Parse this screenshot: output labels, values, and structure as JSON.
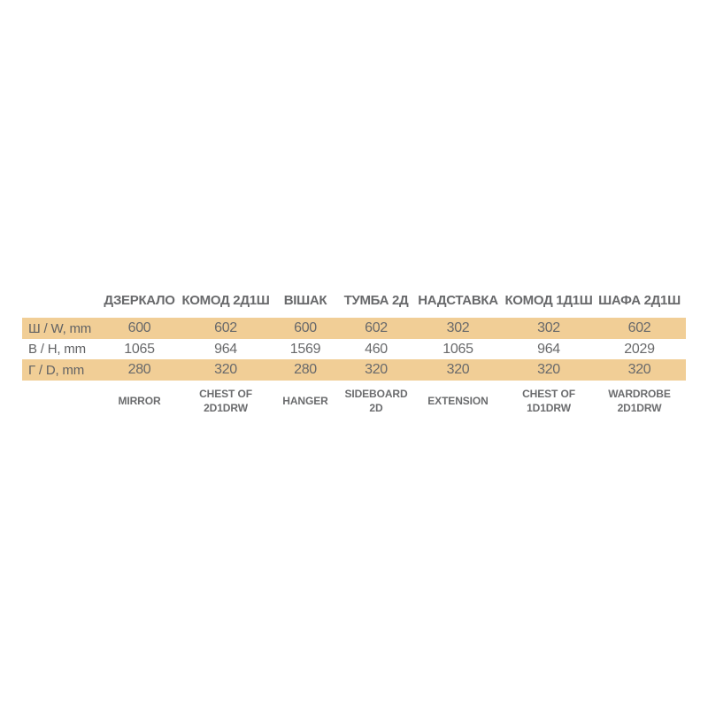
{
  "chart_data": {
    "type": "table",
    "title": "",
    "row_headers": [
      "Ш / W, mm",
      "В / H, mm",
      "Г / D, mm"
    ],
    "column_headers_ua": [
      "ДЗЕРКАЛО",
      "КОМОД 2Д1Ш",
      "ВІШАК",
      "ТУМБА 2Д",
      "НАДСТАВКА",
      "КОМОД 1Д1Ш",
      "ШАФА 2Д1Ш"
    ],
    "column_headers_en": [
      "MIRROR",
      "CHEST OF 2D1DRW",
      "HANGER",
      "SIDEBOARD 2D",
      "EXTENSION",
      "CHEST OF 1D1DRW",
      "WARDROBE 2D1DRW"
    ],
    "rows": [
      [
        600,
        602,
        600,
        602,
        302,
        302,
        602
      ],
      [
        1065,
        964,
        1569,
        460,
        1065,
        964,
        2029
      ],
      [
        280,
        320,
        280,
        320,
        320,
        320,
        320
      ]
    ]
  },
  "table": {
    "row_labels": {
      "width": "Ш / W, mm",
      "height": "В / H, mm",
      "depth": "Г / D, mm"
    },
    "columns": [
      {
        "name_ua": "ДЗЕРКАЛО",
        "name_en": "MIRROR",
        "w": "600",
        "h": "1065",
        "d": "280"
      },
      {
        "name_ua": "КОМОД 2Д1Ш",
        "name_en": "CHEST OF 2D1DRW",
        "w": "602",
        "h": "964",
        "d": "320"
      },
      {
        "name_ua": "ВІШАК",
        "name_en": "HANGER",
        "w": "600",
        "h": "1569",
        "d": "280"
      },
      {
        "name_ua": "ТУМБА 2Д",
        "name_en": "SIDEBOARD 2D",
        "w": "602",
        "h": "460",
        "d": "320"
      },
      {
        "name_ua": "НАДСТАВКА",
        "name_en": "EXTENSION",
        "w": "302",
        "h": "1065",
        "d": "320"
      },
      {
        "name_ua": "КОМОД 1Д1Ш",
        "name_en": "CHEST OF 1D1DRW",
        "w": "302",
        "h": "964",
        "d": "320"
      },
      {
        "name_ua": "ШАФА 2Д1Ш",
        "name_en": "WARDROBE 2D1DRW",
        "w": "602",
        "h": "2029",
        "d": "320"
      }
    ],
    "colors": {
      "band": "#f1ce96",
      "text": "#68696b",
      "background": "#ffffff"
    }
  }
}
